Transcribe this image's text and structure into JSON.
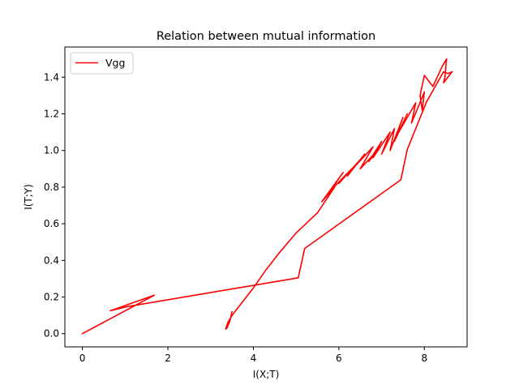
{
  "chart_data": {
    "type": "line",
    "title": "Relation between mutual information",
    "xlabel": "I(X;T)",
    "ylabel": "I(T;Y)",
    "xlim": [
      -0.41,
      9.0
    ],
    "ylim": [
      -0.072,
      1.565
    ],
    "xticks": [
      0,
      2,
      4,
      6,
      8
    ],
    "yticks": [
      0.0,
      0.2,
      0.4,
      0.6,
      0.8,
      1.0,
      1.2,
      1.4
    ],
    "grid": false,
    "legend_position": "upper-left",
    "series": [
      {
        "name": "Vgg",
        "color": "#ff0000",
        "x": [
          0.0,
          1.68,
          0.65,
          1.05,
          5.05,
          5.2,
          7.45,
          7.6,
          8.05,
          8.45,
          8.55,
          8.65,
          8.45,
          8.48,
          8.52,
          8.42,
          8.2,
          8.0,
          7.9,
          7.95,
          8.0,
          7.7,
          7.8,
          7.4,
          7.6,
          7.3,
          7.5,
          7.2,
          7.3,
          7.0,
          7.2,
          6.8,
          7.0,
          6.7,
          6.9,
          6.5,
          6.8,
          6.4,
          6.6,
          6.2,
          6.5,
          6.0,
          6.3,
          5.8,
          6.1,
          5.6,
          5.9,
          5.5,
          5.0,
          4.6,
          4.3,
          4.0,
          3.7,
          3.5,
          3.4,
          3.35,
          3.38,
          3.45,
          3.5
        ],
        "y": [
          0.0,
          0.21,
          0.125,
          0.148,
          0.305,
          0.465,
          0.84,
          1.005,
          1.265,
          1.43,
          1.42,
          1.43,
          1.37,
          1.4,
          1.5,
          1.46,
          1.35,
          1.41,
          1.3,
          1.22,
          1.32,
          1.15,
          1.26,
          1.1,
          1.2,
          1.05,
          1.18,
          1.0,
          1.12,
          0.98,
          1.1,
          0.96,
          1.05,
          0.94,
          1.0,
          0.9,
          1.02,
          0.92,
          0.98,
          0.86,
          0.95,
          0.82,
          0.9,
          0.78,
          0.88,
          0.72,
          0.8,
          0.66,
          0.55,
          0.44,
          0.35,
          0.25,
          0.16,
          0.1,
          0.06,
          0.025,
          0.03,
          0.07,
          0.12
        ]
      }
    ]
  }
}
